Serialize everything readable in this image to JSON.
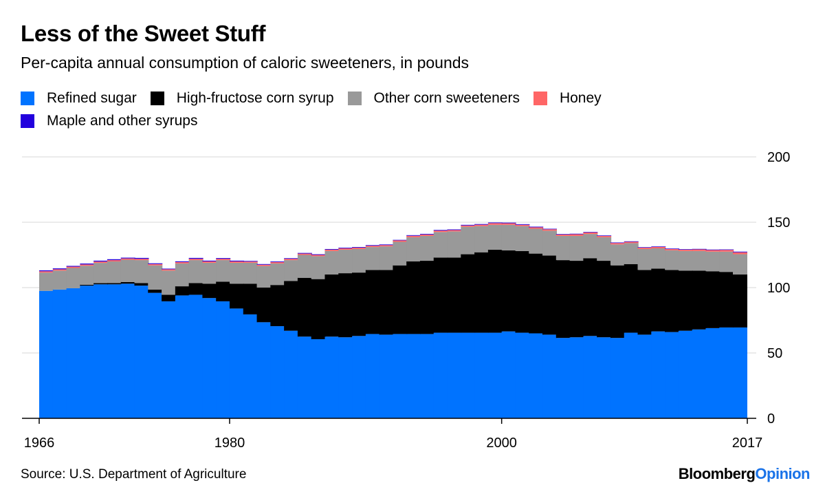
{
  "header": {
    "title": "Less of the Sweet Stuff",
    "subtitle": "Per-capita annual consumption of caloric sweeteners, in pounds"
  },
  "footer": {
    "source": "Source: U.S. Department of Agriculture",
    "brand_part1": "Bloomberg",
    "brand_part2": "Opinion"
  },
  "chart_data": {
    "type": "bar",
    "stacked": true,
    "title": "Less of the Sweet Stuff",
    "subtitle": "Per-capita annual consumption of caloric sweeteners, in pounds",
    "xlabel": "",
    "ylabel": "",
    "ylim": [
      0,
      200
    ],
    "y_ticks": [
      0,
      50,
      100,
      150,
      200
    ],
    "y_axis_side": "right",
    "x_tick_labels": [
      "1966",
      "1980",
      "2000",
      "2017"
    ],
    "grid": true,
    "legend_position": "top-left",
    "categories": [
      1966,
      1967,
      1968,
      1969,
      1970,
      1971,
      1972,
      1973,
      1974,
      1975,
      1976,
      1977,
      1978,
      1979,
      1980,
      1981,
      1982,
      1983,
      1984,
      1985,
      1986,
      1987,
      1988,
      1989,
      1990,
      1991,
      1992,
      1993,
      1994,
      1995,
      1996,
      1997,
      1998,
      1999,
      2000,
      2001,
      2002,
      2003,
      2004,
      2005,
      2006,
      2007,
      2008,
      2009,
      2010,
      2011,
      2012,
      2013,
      2014,
      2015,
      2016,
      2017
    ],
    "series": [
      {
        "name": "Refined sugar",
        "color": "#0073ff",
        "values": [
          97.5,
          98.5,
          99.5,
          101.5,
          102.5,
          102.5,
          103.0,
          101.5,
          96.0,
          89.5,
          94.0,
          94.5,
          92.0,
          89.5,
          84.0,
          79.5,
          73.5,
          70.5,
          67.0,
          62.5,
          60.5,
          62.5,
          62.0,
          63.0,
          64.5,
          64.0,
          64.5,
          64.5,
          64.5,
          65.5,
          65.5,
          65.5,
          65.5,
          65.5,
          66.5,
          65.5,
          65.0,
          64.0,
          61.5,
          62.0,
          63.0,
          62.0,
          61.5,
          65.5,
          64.0,
          66.5,
          66.0,
          67.0,
          68.0,
          69.0,
          69.5,
          69.5
        ]
      },
      {
        "name": "High-fructose corn syrup",
        "color": "#000000",
        "values": [
          0.0,
          0.0,
          0.0,
          0.7,
          0.9,
          1.0,
          1.3,
          2.0,
          2.5,
          5.0,
          7.0,
          9.0,
          11.0,
          15.0,
          19.0,
          23.5,
          26.5,
          31.5,
          38.0,
          45.0,
          46.0,
          47.5,
          49.0,
          48.5,
          49.0,
          49.5,
          52.5,
          55.5,
          56.0,
          57.5,
          57.5,
          60.0,
          61.5,
          63.5,
          62.0,
          62.5,
          61.0,
          60.5,
          59.5,
          58.5,
          59.5,
          58.5,
          55.5,
          52.5,
          49.5,
          48.0,
          47.5,
          46.0,
          45.0,
          43.5,
          42.5,
          40.5
        ]
      },
      {
        "name": "Other corn sweeteners",
        "color": "#999999",
        "values": [
          14.0,
          14.5,
          15.5,
          14.5,
          15.5,
          16.5,
          17.0,
          17.5,
          18.5,
          18.5,
          17.5,
          17.5,
          16.0,
          16.5,
          16.0,
          16.0,
          16.5,
          16.5,
          16.0,
          17.5,
          17.5,
          18.0,
          18.0,
          18.0,
          17.5,
          18.0,
          18.0,
          18.5,
          19.0,
          19.5,
          20.0,
          21.0,
          20.0,
          19.0,
          19.5,
          19.0,
          19.0,
          19.0,
          18.5,
          19.0,
          18.5,
          18.0,
          16.0,
          16.0,
          16.0,
          15.5,
          15.0,
          15.0,
          15.0,
          15.0,
          15.5,
          15.5
        ]
      },
      {
        "name": "Honey",
        "color": "#ff6666",
        "values": [
          1.0,
          1.0,
          1.0,
          1.0,
          1.0,
          1.0,
          1.0,
          1.0,
          1.0,
          1.0,
          1.0,
          1.0,
          1.0,
          1.0,
          1.0,
          0.9,
          1.0,
          1.0,
          1.0,
          1.0,
          1.0,
          1.0,
          1.0,
          1.0,
          1.0,
          1.0,
          1.1,
          1.1,
          1.1,
          1.1,
          1.0,
          1.0,
          1.1,
          1.3,
          1.2,
          1.0,
          1.1,
          1.1,
          1.1,
          1.3,
          1.2,
          1.0,
          1.1,
          1.0,
          1.0,
          1.1,
          1.0,
          1.0,
          1.2,
          1.2,
          1.3,
          1.5
        ]
      },
      {
        "name": "Maple and other syrups",
        "color": "#2200dd",
        "values": [
          0.7,
          0.7,
          0.6,
          0.7,
          0.7,
          0.7,
          0.6,
          0.7,
          0.6,
          0.5,
          0.6,
          0.7,
          0.6,
          0.6,
          0.6,
          0.5,
          0.5,
          0.5,
          0.5,
          0.5,
          0.5,
          0.5,
          0.5,
          0.5,
          0.5,
          0.5,
          0.4,
          0.5,
          0.5,
          0.5,
          0.5,
          0.5,
          0.5,
          0.5,
          0.5,
          0.5,
          0.5,
          0.4,
          0.4,
          0.4,
          0.4,
          0.4,
          0.4,
          0.4,
          0.4,
          0.4,
          0.4,
          0.4,
          0.4,
          0.4,
          0.4,
          0.5
        ]
      }
    ]
  }
}
